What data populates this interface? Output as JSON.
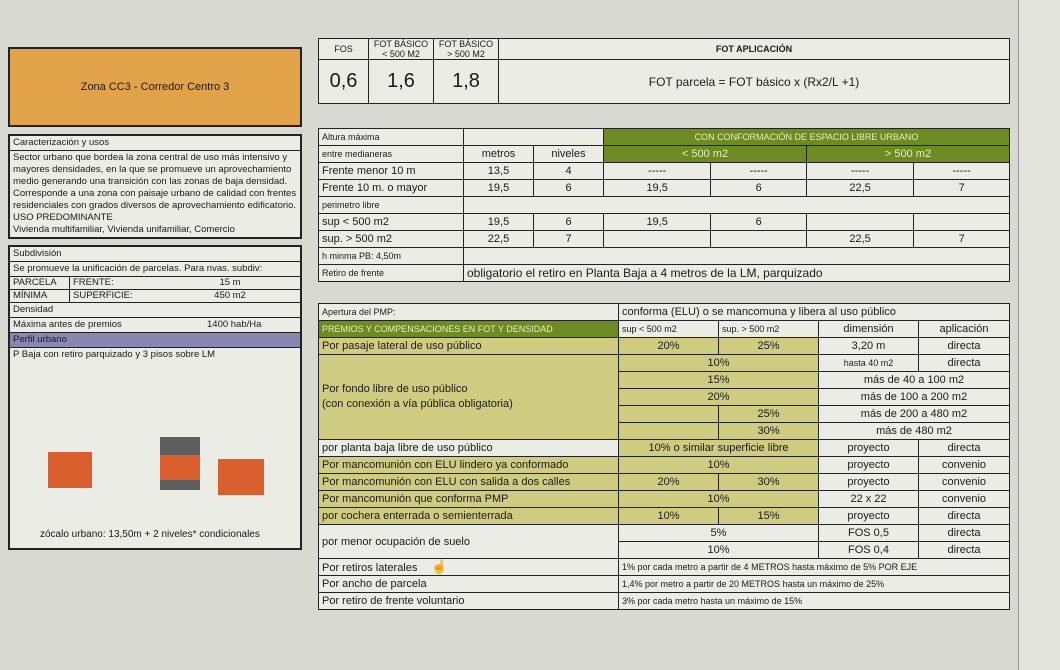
{
  "zone": {
    "title": "Zona CC3 - Corredor Centro 3"
  },
  "caract": {
    "heading": "Caracterización y usos",
    "lines": [
      "Sector urbano que bordea la zona central de uso más intensivo y",
      "mayores densidades, en la que se promueve un aprovechamiento",
      "medio generando una transición con las zonas de baja densidad.",
      "Corresponde a una zona con paisaje urbano de calidad con frentes",
      "residenciales con grados diversos de aprovechamiento edificatorio."
    ],
    "uso_heading": "USO PREDOMINANTE",
    "uso": "Vivienda multifamiliar, Vivienda unifamiliar, Comercio"
  },
  "subdiv": {
    "heading": "Subdivisión",
    "text": "Se promueve la unificación de parcelas. Para nvas. subdiv:",
    "parcela": "PARCELA",
    "minima": "MÍNIMA",
    "frente_label": "FRENTE:",
    "frente": "15 m",
    "sup_label": "SUPERFICIE:",
    "sup": "450 m2"
  },
  "densidad": {
    "heading": "Densidad",
    "label": "Máxima antes de premios",
    "value": "1400 hab/Ha"
  },
  "perfil": {
    "heading": "Perfil urbano",
    "text": "P Baja con retiro parquizado y 3 pisos sobre LM",
    "caption": "zócalo urbano:  13,50m   + 2 niveles* condicionales",
    "colors": {
      "block": "#d9602e",
      "dark": "#5e5e5e"
    }
  },
  "fot": {
    "h_fos": "FOS",
    "h_fot1": "FOT BÁSICO < 500 M2",
    "h_fot2": "FOT BÁSICO > 500 M2",
    "h_app": "FOT APLICACIÓN",
    "fos": "0,6",
    "fot1": "1,6",
    "fot2": "1,8",
    "formula": "FOT parcela = FOT básico x (Rx2/L +1)"
  },
  "altura": {
    "r0": "Altura máxima",
    "elu": "CON CONFORMACIÓN DE ESPACIO LIBRE URBANO",
    "r1": "entre medianeras",
    "metros": "metros",
    "niveles": "niveles",
    "lt500": "< 500 m2",
    "gt500": "> 500 m2",
    "rows": [
      [
        "Frente menor 10 m",
        "13,5",
        "4",
        "-----",
        "-----",
        "-----",
        "-----"
      ],
      [
        "Frente 10 m. o mayor",
        "19,5",
        "6",
        "19,5",
        "6",
        "22,5",
        "7"
      ]
    ],
    "perim": "perimetro libre",
    "prows": [
      [
        "sup < 500 m2",
        "19,5",
        "6",
        "19,5",
        "6",
        "",
        ""
      ],
      [
        "sup. > 500 m2",
        "22,5",
        "7",
        "",
        "",
        "22,5",
        "7"
      ]
    ],
    "hmin": "h minma PB: 4,50m",
    "retiro_label": "Retiro de frente",
    "retiro": "obligatorio el retiro en Planta Baja a 4 metros de la LM, parquizado"
  },
  "pmp": {
    "apertura_label": "Apertura del PMP:",
    "apertura": "conforma (ELU)  o se mancomuna y libera al uso público",
    "premios": "PREMIOS Y COMPENSACIONES EN FOT Y DENSIDAD",
    "h1": "sup < 500 m2",
    "h2": "sup. > 500 m2",
    "h3": "dimensión",
    "h4": "aplicación",
    "pasaje": [
      "Por pasaje lateral de uso público",
      "20%",
      "25%",
      "3,20 m",
      "directa"
    ],
    "fondo1": "Por fondo libre de uso público",
    "fondo2": "(con conexión a vía pública obligatoria)",
    "f10": "10%",
    "fdim1": "hasta 40 m2",
    "fap1": "directa",
    "f15": "15%",
    "fdim2": "más de 40 a 100 m2",
    "f20": "20%",
    "fdim3": "más de 100 a 200 m2",
    "f25": "25%",
    "fdim4": "más de 200 a 480 m2",
    "f30": "30%",
    "fdim5": "más de 480 m2",
    "pb": [
      "por planta baja libre de uso público",
      "10%   o similar superficie libre",
      "proyecto",
      "directa"
    ],
    "manc1": [
      "Por mancomunión con ELU lindero ya conformado",
      "10%",
      "proyecto",
      "convenio"
    ],
    "manc2": [
      "Por mancomunión con ELU con salida a dos calles",
      "20%",
      "30%",
      "proyecto",
      "convenio"
    ],
    "manc3": [
      "Por mancomunión que conforma PMP",
      "10%",
      "22 x 22",
      "convenio"
    ],
    "cochera": [
      "por cochera enterrada o semienterrada",
      "10%",
      "15%",
      "proyecto",
      "directa"
    ],
    "menor": "por menor ocupación de suelo",
    "m5": [
      "5%",
      "FOS 0,5",
      "directa"
    ],
    "m10": [
      "10%",
      "FOS 0,4",
      "directa"
    ],
    "retiros": [
      "Por retiros laterales",
      "1% por cada metro a partir de 4 METROS hasta máximo de 5% POR EJE"
    ],
    "ancho": [
      "Por ancho de parcela",
      "1,4% por metro a partir de 20 METROS hasta un máximo de 25%"
    ],
    "frente": [
      "Por retiro de frente voluntario",
      "3% por cada metro hasta un máximo de 15%"
    ]
  }
}
